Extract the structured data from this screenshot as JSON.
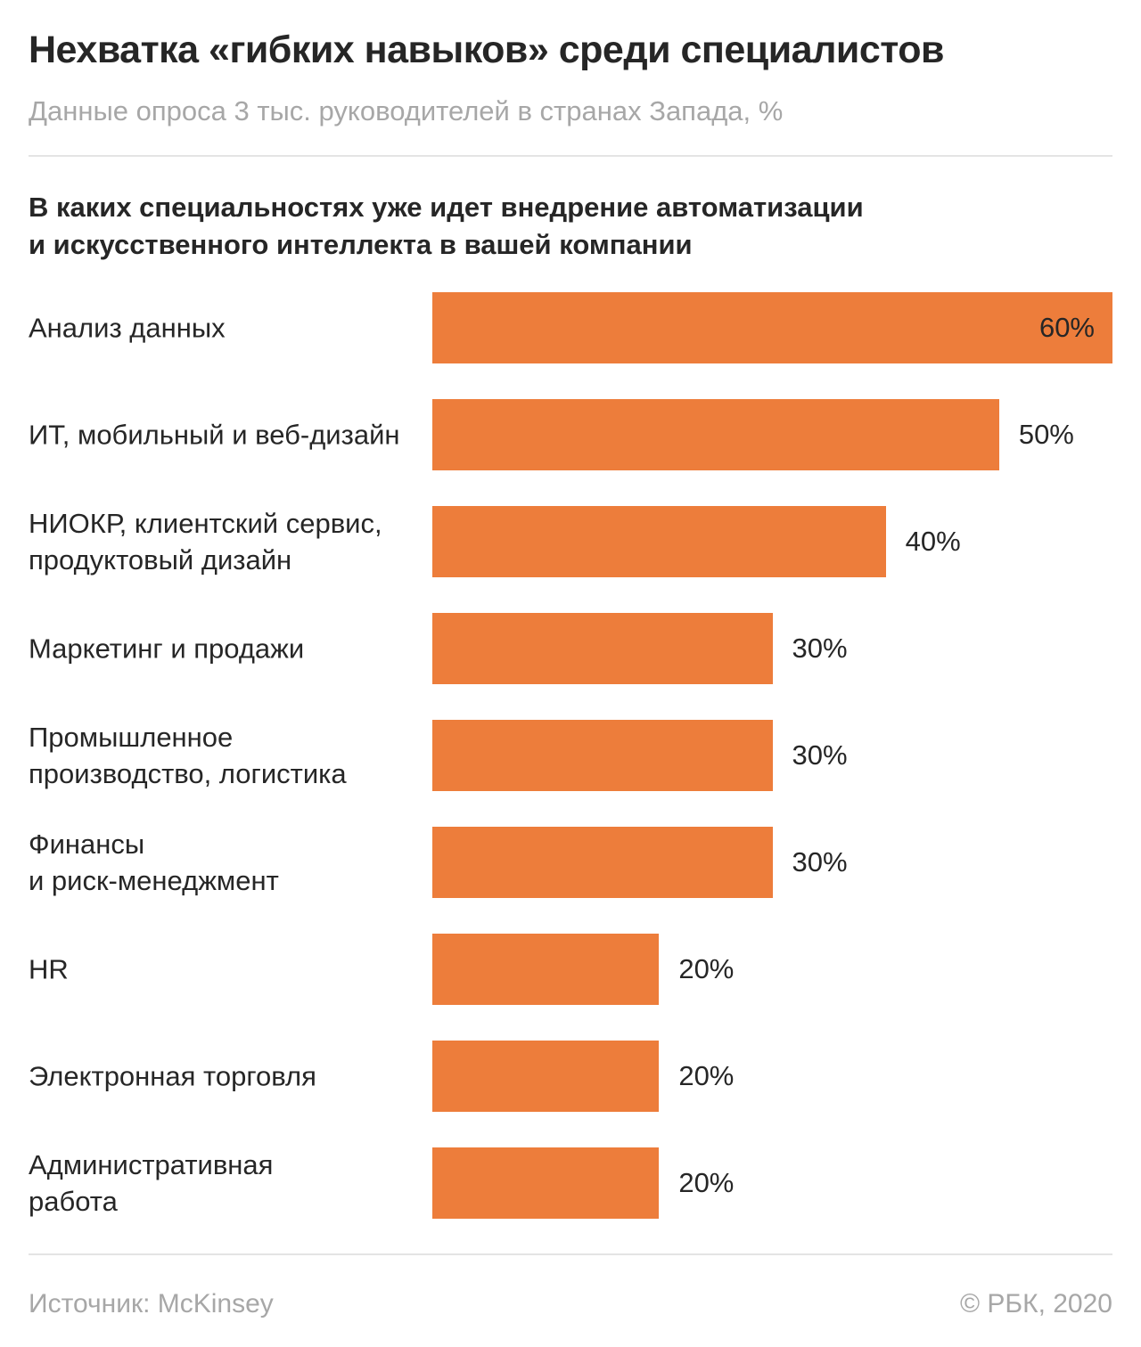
{
  "header": {
    "title": "Нехватка «гибких навыков» среди специалистов",
    "subtitle": "Данные опроса 3 тыс. руководителей в странах Запада, %"
  },
  "question_lines": {
    "line1": "В каких специальностях уже идет внедрение автоматизации",
    "line2": "и искусственного интеллекта в вашей компании"
  },
  "footer": {
    "source": "Источник: McKinsey",
    "copyright": "© РБК, 2020"
  },
  "colors": {
    "bar": "#ED7D3B",
    "text_dark": "#262626",
    "text_gray": "#A7A7A7",
    "divider": "#E4E4E4"
  },
  "chart_data": {
    "type": "bar",
    "orientation": "horizontal",
    "title": "В каких специальностях уже идет внедрение автоматизации и искусственного интеллекта в вашей компании",
    "unit": "%",
    "xlim": [
      0,
      60
    ],
    "grid": false,
    "legend": false,
    "categories": [
      "Анализ данных",
      "ИТ, мобильный и веб-дизайн",
      "НИОКР, клиентский сервис, продуктовый дизайн",
      "Маркетинг и продажи",
      "Промышленное производство, логистика",
      "Финансы и риск-менеджмент",
      "HR",
      "Электронная торговля",
      "Административная работа"
    ],
    "values": [
      60,
      50,
      40,
      30,
      30,
      30,
      20,
      20,
      20
    ],
    "bars": [
      {
        "label_lines": [
          "Анализ данных"
        ],
        "value": 60,
        "value_label": "60%"
      },
      {
        "label_lines": [
          "ИТ, мобильный и веб-дизайн"
        ],
        "value": 50,
        "value_label": "50%"
      },
      {
        "label_lines": [
          "НИОКР, клиентский сервис,",
          "продуктовый дизайн"
        ],
        "value": 40,
        "value_label": "40%"
      },
      {
        "label_lines": [
          "Маркетинг и продажи"
        ],
        "value": 30,
        "value_label": "30%"
      },
      {
        "label_lines": [
          "Промышленное",
          "производство, логистика"
        ],
        "value": 30,
        "value_label": "30%"
      },
      {
        "label_lines": [
          "Финансы",
          "и риск-менеджмент"
        ],
        "value": 30,
        "value_label": "30%"
      },
      {
        "label_lines": [
          "HR"
        ],
        "value": 20,
        "value_label": "20%"
      },
      {
        "label_lines": [
          "Электронная торговля"
        ],
        "value": 20,
        "value_label": "20%"
      },
      {
        "label_lines": [
          "Административная",
          "работа"
        ],
        "value": 20,
        "value_label": "20%"
      }
    ]
  }
}
